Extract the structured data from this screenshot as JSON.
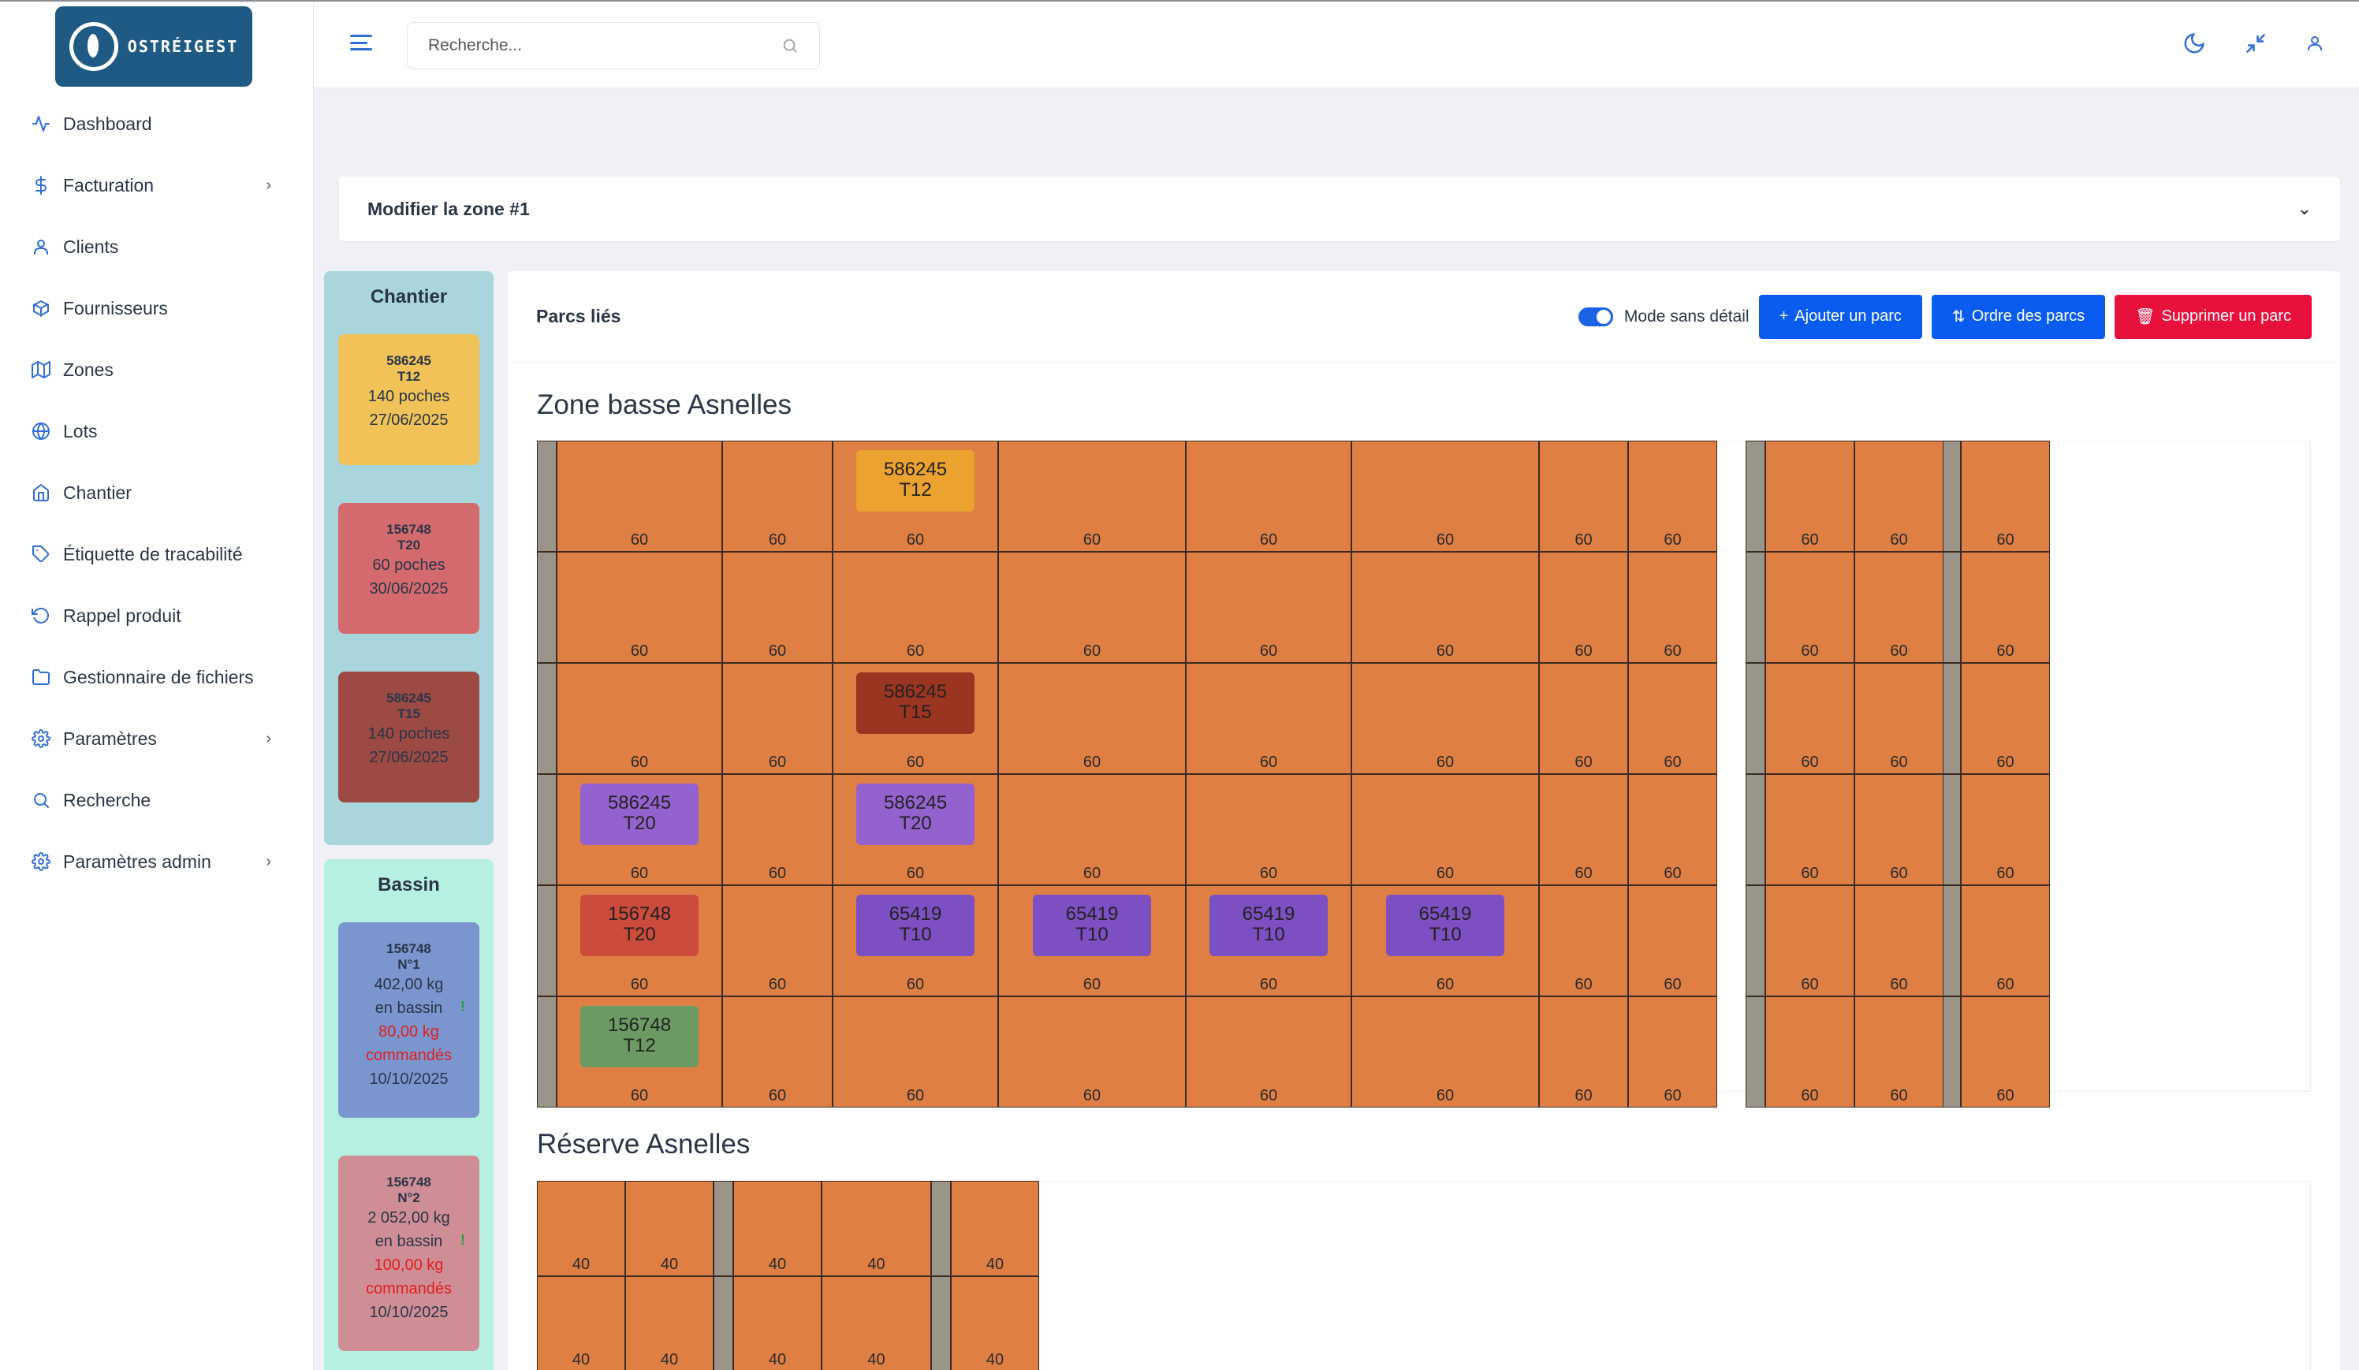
{
  "app": {
    "logo_text": "OSTRÉIGEST"
  },
  "sidebar": {
    "items": [
      {
        "label": "Dashboard",
        "icon": "activity-icon",
        "chevron": false
      },
      {
        "label": "Facturation",
        "icon": "dollar-icon",
        "chevron": true
      },
      {
        "label": "Clients",
        "icon": "user-icon",
        "chevron": false
      },
      {
        "label": "Fournisseurs",
        "icon": "box-icon",
        "chevron": false
      },
      {
        "label": "Zones",
        "icon": "map-icon",
        "chevron": false
      },
      {
        "label": "Lots",
        "icon": "globe-icon",
        "chevron": false
      },
      {
        "label": "Chantier",
        "icon": "home-icon",
        "chevron": false
      },
      {
        "label": "Étiquette de tracabilité",
        "icon": "tag-icon",
        "chevron": false
      },
      {
        "label": "Rappel produit",
        "icon": "rotate-ccw-icon",
        "chevron": false
      },
      {
        "label": "Gestionnaire de fichiers",
        "icon": "folder-icon",
        "chevron": false
      },
      {
        "label": "Paramètres",
        "icon": "settings-icon",
        "chevron": true
      },
      {
        "label": "Recherche",
        "icon": "search-icon",
        "chevron": false
      },
      {
        "label": "Paramètres admin",
        "icon": "settings-icon",
        "chevron": true
      }
    ]
  },
  "header": {
    "search_placeholder": "Recherche..."
  },
  "banner": {
    "title": "Modifier la zone #1"
  },
  "chantier": {
    "title": "Chantier",
    "cards": [
      {
        "lot": "586245",
        "tag": "T12",
        "qty": "140 poches",
        "date": "27/06/2025",
        "color": "#f0c257"
      },
      {
        "lot": "156748",
        "tag": "T20",
        "qty": "60 poches",
        "date": "30/06/2025",
        "color": "#d46a6e"
      },
      {
        "lot": "586245",
        "tag": "T15",
        "qty": "140 poches",
        "date": "27/06/2025",
        "color": "#9c4a43"
      }
    ]
  },
  "bassin": {
    "title": "Bassin",
    "cards": [
      {
        "lot": "156748",
        "tag": "N°1",
        "weight": "402,00 kg",
        "state": "en bassin",
        "ordered": "80,00 kg",
        "ordered_label": "commandés",
        "date": "10/10/2025",
        "warn": "!",
        "color": "#7b96cf"
      },
      {
        "lot": "156748",
        "tag": "N°2",
        "weight": "2 052,00 kg",
        "state": "en bassin",
        "ordered": "100,00 kg",
        "ordered_label": "commandés",
        "date": "10/10/2025",
        "warn": "!",
        "color": "#cf8e96"
      }
    ]
  },
  "panel": {
    "title": "Parcs liés",
    "toggle_label": "Mode sans détail",
    "add_button": "Ajouter un parc",
    "order_button": "Ordre des parcs",
    "delete_button": "Supprimer un parc"
  },
  "zones": [
    {
      "name": "Zone basse Asnelles",
      "rows": 6,
      "cols": 13,
      "value": "60",
      "tags": [
        {
          "row": 0,
          "col": 2,
          "lot": "586245",
          "tag": "T12",
          "color": "#eba22f"
        },
        {
          "row": 2,
          "col": 2,
          "lot": "586245",
          "tag": "T15",
          "color": "#9b3420"
        },
        {
          "row": 3,
          "col": 0,
          "lot": "586245",
          "tag": "T20",
          "color": "#9462cf"
        },
        {
          "row": 3,
          "col": 2,
          "lot": "586245",
          "tag": "T20",
          "color": "#9462cf"
        },
        {
          "row": 4,
          "col": 0,
          "lot": "156748",
          "tag": "T20",
          "color": "#cb4b3c"
        },
        {
          "row": 4,
          "col": 2,
          "lot": "65419",
          "tag": "T10",
          "color": "#7c4fc2"
        },
        {
          "row": 4,
          "col": 3,
          "lot": "65419",
          "tag": "T10",
          "color": "#7c4fc2"
        },
        {
          "row": 4,
          "col": 4,
          "lot": "65419",
          "tag": "T10",
          "color": "#7c4fc2"
        },
        {
          "row": 4,
          "col": 5,
          "lot": "65419",
          "tag": "T10",
          "color": "#7c4fc2"
        },
        {
          "row": 5,
          "col": 0,
          "lot": "156748",
          "tag": "T12",
          "color": "#6b9a63"
        }
      ]
    },
    {
      "name": "Réserve Asnelles",
      "rows": 2,
      "cols": 5,
      "value": "40",
      "tags": []
    }
  ],
  "colors": {
    "accent": "#2f6ed6",
    "parc": "#e07f44",
    "separator": "#9a9489"
  }
}
